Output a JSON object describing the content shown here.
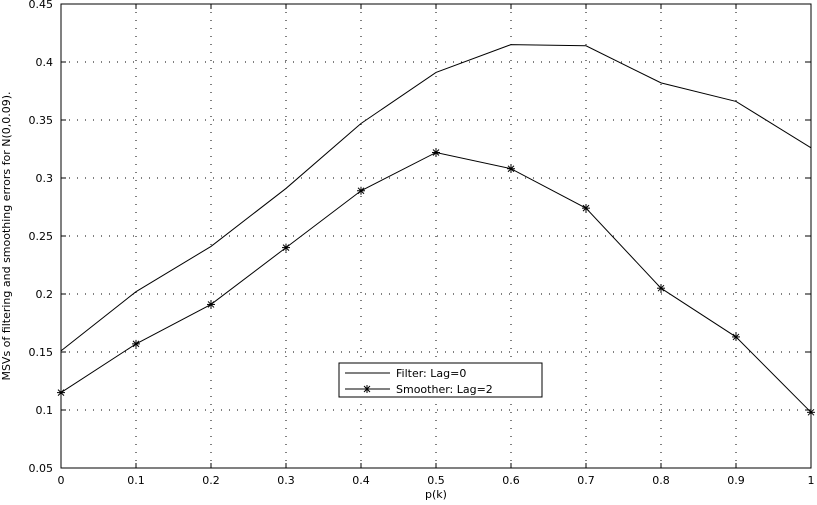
{
  "chart_data": {
    "type": "line",
    "title": "",
    "xlabel": "p(k)",
    "ylabel": "MSVs of filtering and smoothing errors for N(0,0.09).",
    "xlim": [
      0,
      1
    ],
    "ylim": [
      0.05,
      0.45
    ],
    "xticks": [
      0,
      0.1,
      0.2,
      0.3,
      0.4,
      0.5,
      0.6,
      0.7,
      0.8,
      0.9,
      1
    ],
    "xtick_labels": [
      "0",
      "0.1",
      "0.2",
      "0.3",
      "0.4",
      "0.5",
      "0.6",
      "0.7",
      "0.8",
      "0.9",
      "1"
    ],
    "yticks": [
      0.05,
      0.1,
      0.15,
      0.2,
      0.25,
      0.3,
      0.35,
      0.4,
      0.45
    ],
    "ytick_labels": [
      "0.05",
      "0.1",
      "0.15",
      "0.2",
      "0.25",
      "0.3",
      "0.35",
      "0.4",
      "0.45"
    ],
    "grid": true,
    "legend_position": "center-bottom",
    "series": [
      {
        "name": "Filter: Lag=0",
        "marker": "none",
        "color": "#000000",
        "x": [
          0,
          0.1,
          0.2,
          0.3,
          0.4,
          0.5,
          0.6,
          0.7,
          0.8,
          0.9,
          1
        ],
        "y": [
          0.151,
          0.202,
          0.241,
          0.291,
          0.347,
          0.391,
          0.415,
          0.414,
          0.382,
          0.366,
          0.326
        ]
      },
      {
        "name": "Smoother: Lag=2",
        "marker": "star",
        "color": "#000000",
        "x": [
          0,
          0.1,
          0.2,
          0.3,
          0.4,
          0.5,
          0.6,
          0.7,
          0.8,
          0.9,
          1
        ],
        "y": [
          0.115,
          0.157,
          0.191,
          0.24,
          0.289,
          0.322,
          0.308,
          0.274,
          0.205,
          0.163,
          0.098
        ]
      }
    ]
  }
}
